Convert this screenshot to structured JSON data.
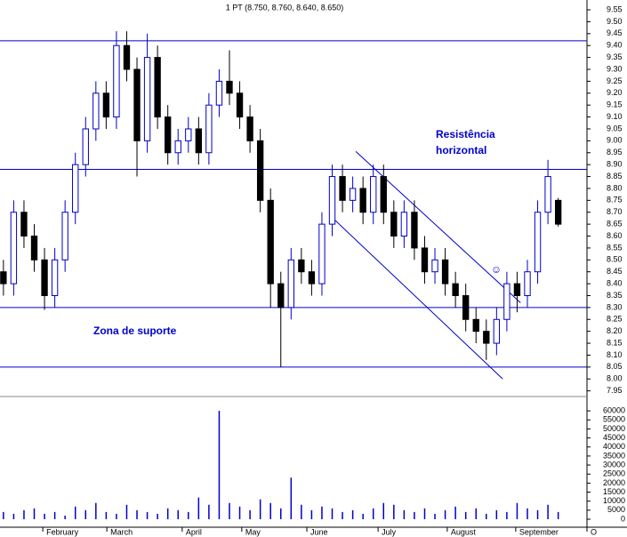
{
  "chart_data": {
    "type": "candlestick",
    "title": "1 PT (8.750, 8.760, 8.640, 8.650)",
    "up_color": "#0000cc",
    "down_color": "#000000",
    "line_color": "#0000cc",
    "xlim": [
      0,
      171.4
    ],
    "xticks": [
      {
        "value": 12.5,
        "label": "February"
      },
      {
        "value": 31.2,
        "label": "March"
      },
      {
        "value": 53.2,
        "label": "April"
      },
      {
        "value": 70.6,
        "label": "May"
      },
      {
        "value": 89.6,
        "label": "June"
      },
      {
        "value": 110.4,
        "label": "July"
      },
      {
        "value": 130.6,
        "label": "August"
      },
      {
        "value": 150.6,
        "label": "September"
      },
      {
        "value": 171.4,
        "label": "O"
      }
    ],
    "ylim": [
      7.93,
      9.58
    ],
    "yticks": [
      {
        "value": 9.55,
        "label": "9.55"
      },
      {
        "value": 9.5,
        "label": "9.50"
      },
      {
        "value": 9.45,
        "label": "9.45"
      },
      {
        "value": 9.4,
        "label": "9.40"
      },
      {
        "value": 9.35,
        "label": "9.35"
      },
      {
        "value": 9.3,
        "label": "9.30"
      },
      {
        "value": 9.25,
        "label": "9.25"
      },
      {
        "value": 9.2,
        "label": "9.20"
      },
      {
        "value": 9.15,
        "label": "9.15"
      },
      {
        "value": 9.1,
        "label": "9.10"
      },
      {
        "value": 9.05,
        "label": "9.05"
      },
      {
        "value": 9.0,
        "label": "9.00"
      },
      {
        "value": 8.95,
        "label": "8.95"
      },
      {
        "value": 8.9,
        "label": "8.90"
      },
      {
        "value": 8.85,
        "label": "8.85"
      },
      {
        "value": 8.8,
        "label": "8.80"
      },
      {
        "value": 8.75,
        "label": "8.75"
      },
      {
        "value": 8.7,
        "label": "8.70"
      },
      {
        "value": 8.65,
        "label": "8.65"
      },
      {
        "value": 8.6,
        "label": "8.60"
      },
      {
        "value": 8.55,
        "label": "8.55"
      },
      {
        "value": 8.5,
        "label": "8.50"
      },
      {
        "value": 8.45,
        "label": "8.45"
      },
      {
        "value": 8.4,
        "label": "8.40"
      },
      {
        "value": 8.35,
        "label": "8.35"
      },
      {
        "value": 8.3,
        "label": "8.30"
      },
      {
        "value": 8.25,
        "label": "8.25"
      },
      {
        "value": 8.2,
        "label": "8.20"
      },
      {
        "value": 8.15,
        "label": "8.15"
      },
      {
        "value": 8.1,
        "label": "8.10"
      },
      {
        "value": 8.05,
        "label": "8.05"
      },
      {
        "value": 8.0,
        "label": "8.00"
      },
      {
        "value": 7.95,
        "label": "7.95"
      }
    ],
    "volume_lim": [
      0,
      64000
    ],
    "volume_ticks": [
      0,
      5000,
      10000,
      15000,
      20000,
      25000,
      30000,
      35000,
      40000,
      45000,
      50000,
      55000,
      60000
    ],
    "horizontal_lines": [
      9.42,
      8.88,
      8.3,
      8.05
    ],
    "trend_lines": [
      {
        "x": [
          103.9,
          152
        ],
        "y": [
          8.955,
          8.32
        ]
      },
      {
        "x": [
          96.1,
          146.8
        ],
        "y": [
          8.69,
          8.0
        ]
      }
    ],
    "annotations": [
      "Resistência",
      "horizontal",
      "Zona de suporte",
      "☺"
    ],
    "x": [
      1,
      4,
      7,
      10,
      13,
      16,
      19,
      22,
      25,
      28,
      31,
      34,
      37,
      40,
      43,
      46,
      49,
      52,
      55,
      58,
      61,
      64,
      67,
      70,
      73,
      76,
      79,
      82,
      85,
      88,
      91,
      94,
      97,
      100,
      103,
      106,
      109,
      112,
      115,
      118,
      121,
      124,
      127,
      130,
      133,
      136,
      139,
      142,
      145,
      148,
      151,
      154,
      157,
      160,
      163
    ],
    "open": [
      8.45,
      8.4,
      8.7,
      8.6,
      8.5,
      8.35,
      8.5,
      8.7,
      8.9,
      9.05,
      9.2,
      9.1,
      9.4,
      9.3,
      9.0,
      9.35,
      9.1,
      8.95,
      9.0,
      9.05,
      8.95,
      9.15,
      9.25,
      9.2,
      9.1,
      9.0,
      8.75,
      8.4,
      8.3,
      8.5,
      8.45,
      8.4,
      8.65,
      8.85,
      8.75,
      8.8,
      8.7,
      8.85,
      8.7,
      8.6,
      8.7,
      8.55,
      8.45,
      8.5,
      8.4,
      8.35,
      8.25,
      8.2,
      8.15,
      8.25,
      8.4,
      8.35,
      8.45,
      8.7,
      8.75
    ],
    "high": [
      8.5,
      8.75,
      8.75,
      8.65,
      8.55,
      8.55,
      8.75,
      8.95,
      9.1,
      9.25,
      9.25,
      9.46,
      9.46,
      9.35,
      9.45,
      9.4,
      9.15,
      9.05,
      9.1,
      9.1,
      9.2,
      9.3,
      9.38,
      9.25,
      9.15,
      9.05,
      8.8,
      8.45,
      8.55,
      8.55,
      8.5,
      8.7,
      8.9,
      8.9,
      8.85,
      8.85,
      8.9,
      8.9,
      8.75,
      8.75,
      8.75,
      8.6,
      8.55,
      8.55,
      8.45,
      8.4,
      8.3,
      8.25,
      8.3,
      8.45,
      8.45,
      8.5,
      8.75,
      8.92,
      8.76
    ],
    "low": [
      8.35,
      8.35,
      8.55,
      8.45,
      8.29,
      8.3,
      8.45,
      8.65,
      8.85,
      9.0,
      9.05,
      9.05,
      9.25,
      8.85,
      8.95,
      9.05,
      8.9,
      8.9,
      8.95,
      8.9,
      8.9,
      9.1,
      9.15,
      9.05,
      8.95,
      8.7,
      8.3,
      8.05,
      8.25,
      8.4,
      8.35,
      8.35,
      8.6,
      8.7,
      8.7,
      8.65,
      8.65,
      8.65,
      8.55,
      8.55,
      8.5,
      8.4,
      8.4,
      8.35,
      8.3,
      8.2,
      8.15,
      8.08,
      8.1,
      8.2,
      8.28,
      8.3,
      8.4,
      8.65,
      8.64
    ],
    "close": [
      8.4,
      8.7,
      8.6,
      8.5,
      8.35,
      8.5,
      8.7,
      8.9,
      9.05,
      9.2,
      9.1,
      9.4,
      9.3,
      9.0,
      9.35,
      9.1,
      8.95,
      9.0,
      9.05,
      8.95,
      9.15,
      9.25,
      9.2,
      9.1,
      9.0,
      8.75,
      8.4,
      8.3,
      8.5,
      8.45,
      8.4,
      8.65,
      8.85,
      8.75,
      8.8,
      8.7,
      8.85,
      8.7,
      8.6,
      8.7,
      8.55,
      8.45,
      8.5,
      8.4,
      8.35,
      8.25,
      8.2,
      8.15,
      8.25,
      8.4,
      8.35,
      8.45,
      8.7,
      8.85,
      8.65
    ],
    "volume": [
      4000,
      3000,
      5000,
      6000,
      3000,
      4000,
      2000,
      7000,
      5000,
      9000,
      4000,
      3000,
      8000,
      5000,
      4000,
      3000,
      6000,
      5000,
      4000,
      12000,
      8000,
      60000,
      9000,
      7000,
      5000,
      11000,
      9000,
      6000,
      23000,
      8000,
      5000,
      7000,
      6000,
      4000,
      5000,
      3000,
      6000,
      9000,
      8000,
      5000,
      4000,
      6000,
      3000,
      5000,
      7000,
      4000,
      6000,
      3000,
      5000,
      4000,
      9000,
      6000,
      5000,
      8000,
      4000
    ]
  }
}
